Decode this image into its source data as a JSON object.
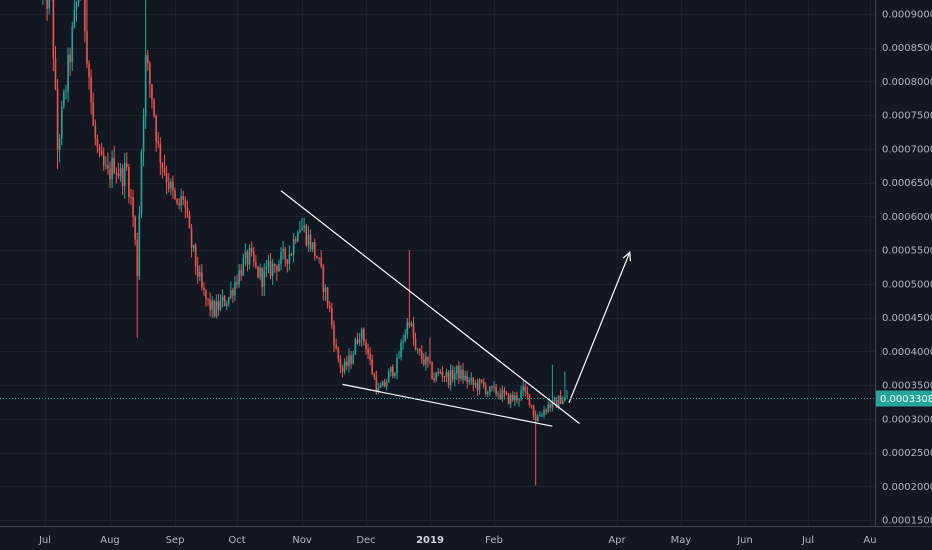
{
  "colors": {
    "background": "#131722",
    "up": "#26a69a",
    "down": "#ef5350",
    "trendline": "#ffffff",
    "price_line": "#26a69a",
    "axis_text": "#b2b5be"
  },
  "chart_data": {
    "type": "candlestick",
    "y_scale": "linear",
    "ylim": [
      0.000145,
      0.000955
    ],
    "y_ticks": [
      "0.0009000",
      "0.0008500",
      "0.0008000",
      "0.0007500",
      "0.0007000",
      "0.0006500",
      "0.0006000",
      "0.0005500",
      "0.0005000",
      "0.0004500",
      "0.0004000",
      "0.0003500",
      "0.0003000",
      "0.0002500",
      "0.0002000",
      "0.0001500"
    ],
    "x_labels": [
      "Jul",
      "Aug",
      "Sep",
      "Oct",
      "Nov",
      "Dec",
      "2019",
      "Feb",
      "Apr",
      "May",
      "Jun",
      "Jul",
      "Au"
    ],
    "x_label_bold": "2019",
    "current_price": "0.0003308",
    "current_price_value": 0.0003308,
    "series_path": [
      [
        "2018-06-30",
        0.00093
      ],
      [
        "2018-07-04",
        0.00092
      ],
      [
        "2018-07-07",
        0.0007
      ],
      [
        "2018-07-18",
        0.00096
      ],
      [
        "2018-07-21",
        0.00085
      ],
      [
        "2018-07-24",
        0.00073
      ],
      [
        "2018-07-27",
        0.00068
      ],
      [
        "2018-07-31",
        0.00066
      ],
      [
        "2018-08-03",
        0.00068
      ],
      [
        "2018-08-06",
        0.00066
      ],
      [
        "2018-08-09",
        0.00067
      ],
      [
        "2018-08-12",
        0.0006
      ],
      [
        "2018-08-14",
        0.00052
      ],
      [
        "2018-08-16",
        0.0007
      ],
      [
        "2018-08-18",
        0.00083
      ],
      [
        "2018-08-21",
        0.00078
      ],
      [
        "2018-08-24",
        0.0007
      ],
      [
        "2018-08-27",
        0.00067
      ],
      [
        "2018-08-30",
        0.00064
      ],
      [
        "2018-09-02",
        0.00061
      ],
      [
        "2018-09-05",
        0.00063
      ],
      [
        "2018-09-08",
        0.00057
      ],
      [
        "2018-09-11",
        0.00053
      ],
      [
        "2018-09-14",
        0.00049
      ],
      [
        "2018-09-17",
        0.00047
      ],
      [
        "2018-09-20",
        0.00046
      ],
      [
        "2018-09-23",
        0.00047
      ],
      [
        "2018-09-27",
        0.00048
      ],
      [
        "2018-10-01",
        0.00051
      ],
      [
        "2018-10-04",
        0.00053
      ],
      [
        "2018-10-07",
        0.00054
      ],
      [
        "2018-10-10",
        0.00052
      ],
      [
        "2018-10-13",
        0.00051
      ],
      [
        "2018-10-16",
        0.00052
      ],
      [
        "2018-10-20",
        0.00053
      ],
      [
        "2018-10-24",
        0.00054
      ],
      [
        "2018-10-27",
        0.00055
      ],
      [
        "2018-10-30",
        0.00059
      ],
      [
        "2018-11-02",
        0.00058
      ],
      [
        "2018-11-05",
        0.00056
      ],
      [
        "2018-11-08",
        0.00054
      ],
      [
        "2018-11-11",
        0.0005
      ],
      [
        "2018-11-14",
        0.00046
      ],
      [
        "2018-11-17",
        0.0004
      ],
      [
        "2018-11-20",
        0.00037
      ],
      [
        "2018-11-24",
        0.00039
      ],
      [
        "2018-11-28",
        0.00043
      ],
      [
        "2018-12-01",
        0.00041
      ],
      [
        "2018-12-04",
        0.00037
      ],
      [
        "2018-12-07",
        0.00034
      ],
      [
        "2018-12-10",
        0.00035
      ],
      [
        "2018-12-13",
        0.00037
      ],
      [
        "2018-12-16",
        0.00038
      ],
      [
        "2018-12-19",
        0.00042
      ],
      [
        "2018-12-22",
        0.00045
      ],
      [
        "2018-12-25",
        0.0004
      ],
      [
        "2018-12-28",
        0.00039
      ],
      [
        "2018-12-31",
        0.00038
      ],
      [
        "2019-01-03",
        0.00036
      ],
      [
        "2019-01-06",
        0.00037
      ],
      [
        "2019-01-10",
        0.00036
      ],
      [
        "2019-01-14",
        0.00037
      ],
      [
        "2019-01-18",
        0.00036
      ],
      [
        "2019-01-22",
        0.00035
      ],
      [
        "2019-01-26",
        0.00035
      ],
      [
        "2019-01-30",
        0.00034
      ],
      [
        "2019-02-03",
        0.00034
      ],
      [
        "2019-02-07",
        0.00033
      ],
      [
        "2019-02-11",
        0.00033
      ],
      [
        "2019-02-15",
        0.00034
      ],
      [
        "2019-02-18",
        0.00033
      ],
      [
        "2019-02-21",
        0.0003
      ],
      [
        "2019-02-24",
        0.00031
      ],
      [
        "2019-02-27",
        0.00032
      ],
      [
        "2019-03-02",
        0.00032
      ],
      [
        "2019-03-05",
        0.00033
      ],
      [
        "2019-03-08",
        0.000331
      ]
    ],
    "wick_highs": [
      [
        "2018-07-21",
        0.00096
      ],
      [
        "2018-08-18",
        0.00096
      ],
      [
        "2018-12-22",
        0.00055
      ],
      [
        "2019-01-01",
        0.00042
      ],
      [
        "2019-03-01",
        0.00038
      ],
      [
        "2019-03-07",
        0.00037
      ]
    ],
    "wick_lows": [
      [
        "2018-07-07",
        0.00067
      ],
      [
        "2018-08-14",
        0.00042
      ],
      [
        "2019-02-21",
        0.000201
      ]
    ],
    "annotations": [
      {
        "type": "trendline",
        "from": [
          "2018-10-22",
          0.000638
        ],
        "to": [
          "2019-03-14",
          0.000293
        ]
      },
      {
        "type": "trendline",
        "from": [
          "2018-11-20",
          0.000351
        ],
        "to": [
          "2019-03-01",
          0.000289
        ]
      },
      {
        "type": "arrow",
        "from": [
          "2019-03-09",
          0.000324
        ],
        "to": [
          "2019-04-07",
          0.000547
        ]
      }
    ]
  }
}
